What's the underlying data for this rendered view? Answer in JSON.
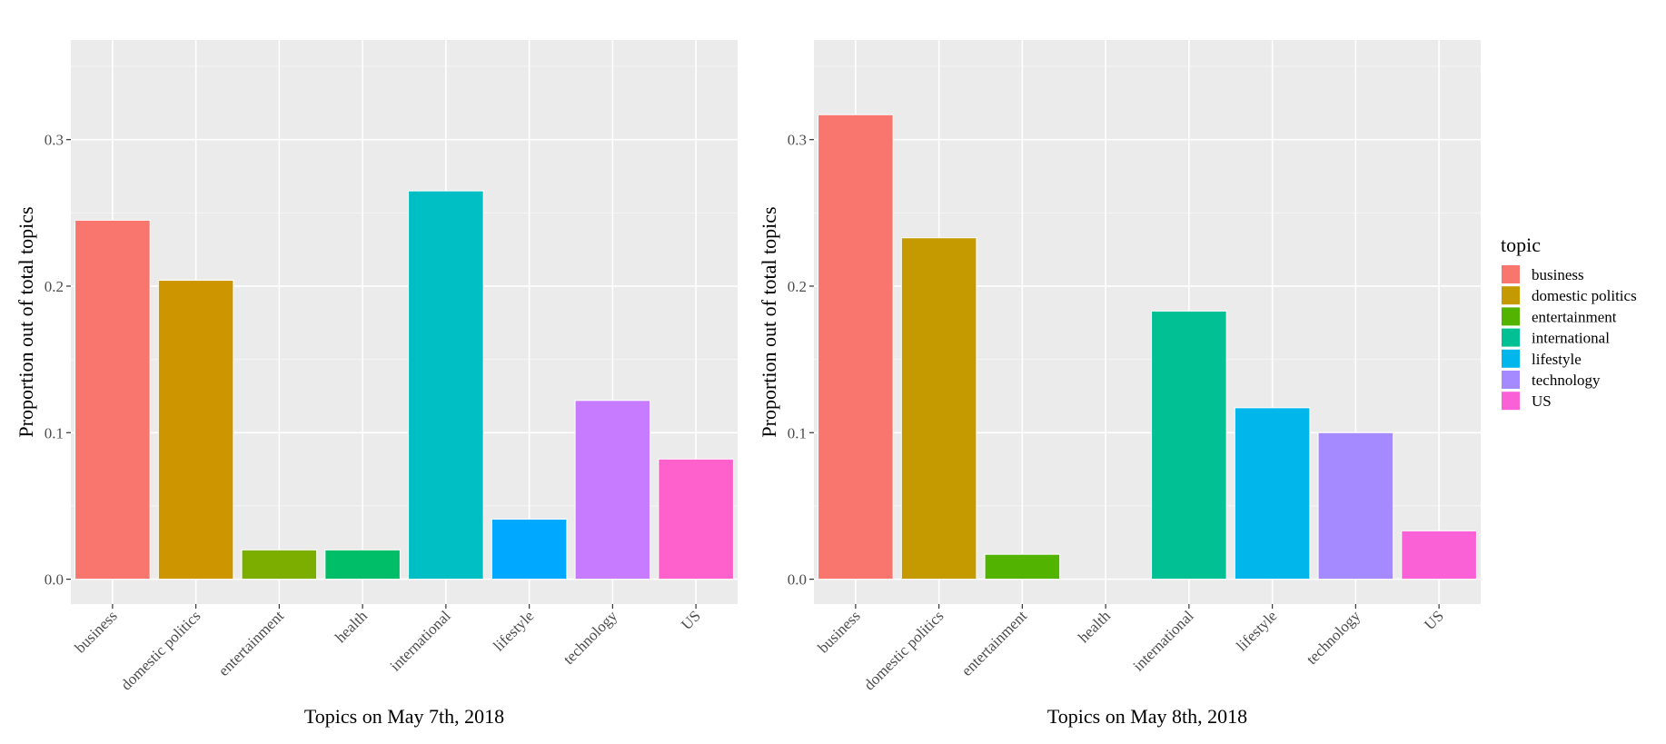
{
  "chart_data": [
    {
      "type": "bar",
      "xlabel": "Topics on May 7th, 2018",
      "ylabel": "Proportion out of total topics",
      "categories": [
        "business",
        "domestic politics",
        "entertainment",
        "health",
        "international",
        "lifestyle",
        "technology",
        "US"
      ],
      "values": [
        0.245,
        0.204,
        0.02,
        0.02,
        0.265,
        0.041,
        0.122,
        0.082
      ],
      "colors": [
        "#F8766D",
        "#CD9600",
        "#7CAE00",
        "#00BE67",
        "#00BFC4",
        "#00A9FF",
        "#C77CFF",
        "#FF61CC"
      ],
      "yticks": [
        0.0,
        0.1,
        0.2,
        0.3
      ],
      "ytick_labels": [
        "0.0",
        "0.1",
        "0.2",
        "0.3"
      ],
      "ylim": [
        -0.017,
        0.368
      ],
      "grid": true
    },
    {
      "type": "bar",
      "xlabel": "Topics on May 8th, 2018",
      "ylabel": "Proportion out of total topics",
      "categories": [
        "business",
        "domestic politics",
        "entertainment",
        "health",
        "international",
        "lifestyle",
        "technology",
        "US"
      ],
      "values": [
        0.317,
        0.233,
        0.017,
        0.0,
        0.183,
        0.117,
        0.1,
        0.033
      ],
      "colors": [
        "#F8766D",
        "#C49A00",
        "#53B400",
        "#00C094",
        "#00C094",
        "#00B6EB",
        "#A58AFF",
        "#FB61D7"
      ],
      "yticks": [
        0.0,
        0.1,
        0.2,
        0.3
      ],
      "ytick_labels": [
        "0.0",
        "0.1",
        "0.2",
        "0.3"
      ],
      "ylim": [
        -0.017,
        0.368
      ],
      "grid": true
    }
  ],
  "legend": {
    "title": "topic",
    "placement": "right",
    "items": [
      {
        "label": "business",
        "color": "#F8766D"
      },
      {
        "label": "domestic politics",
        "color": "#C49A00"
      },
      {
        "label": "entertainment",
        "color": "#53B400"
      },
      {
        "label": "international",
        "color": "#00C094"
      },
      {
        "label": "lifestyle",
        "color": "#00B6EB"
      },
      {
        "label": "technology",
        "color": "#A58AFF"
      },
      {
        "label": "US",
        "color": "#FB61D7"
      }
    ]
  }
}
